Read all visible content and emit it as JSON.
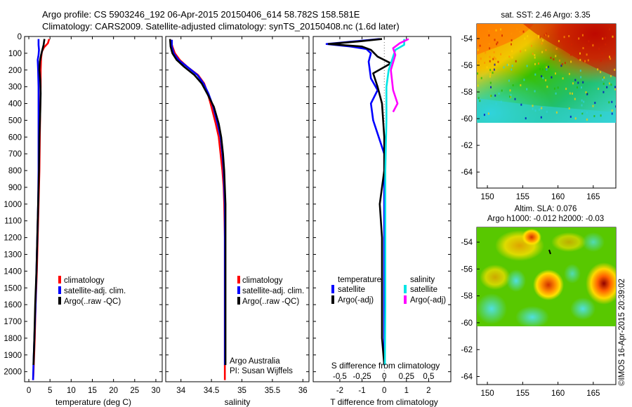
{
  "header": {
    "line1": "Argo profile: CS 5903246_192 06-Apr-2015 20150406_614 58.782S 158.581E",
    "line2": "Climatology: CARS2009. Satellite-adjusted climatology: synTS_20150408.nc (1.6d later)"
  },
  "copyright": "©IMOS 16-Apr-2015 20:39:02",
  "annotations": {
    "argo_australia": "Argo Australia",
    "pi": "PI: Susan Wijffels"
  },
  "colors": {
    "climatology": "#ff0000",
    "satellite": "#0000ff",
    "argo": "#000000",
    "sal_satellite": "#00e5e5",
    "sal_argo": "#ff00ff"
  },
  "legend_profiles": {
    "climatology": "climatology",
    "satellite": "satellite-adj. clim.",
    "argo": "Argo(..raw -QC)"
  },
  "legend_diff": {
    "temp_header": "temperature",
    "sal_header": "salinity",
    "satellite": "satellite",
    "argo": "Argo(-adj)"
  },
  "maps": {
    "sst_title": "sat. SST: 2.46 Argo: 3.35",
    "sla_title1": "Altim. SLA: 0.076",
    "sla_title2": "Argo h1000: -0.012 h2000: -0.03",
    "lat_ticks": [
      "-54",
      "-56",
      "-58",
      "-60",
      "-62",
      "-64"
    ],
    "lon_ticks": [
      "150",
      "155",
      "160",
      "165"
    ]
  },
  "chart_data": [
    {
      "type": "line",
      "xlabel": "temperature (deg C)",
      "ylabel": "",
      "xlim": [
        -1,
        31.5
      ],
      "ylim": [
        2060,
        0
      ],
      "xticks": [
        0,
        5,
        10,
        15,
        20,
        25,
        30
      ],
      "yticks": [
        0,
        100,
        200,
        300,
        400,
        500,
        600,
        700,
        800,
        900,
        1000,
        1100,
        1200,
        1300,
        1400,
        1500,
        1600,
        1700,
        1800,
        1900,
        2000
      ],
      "series": [
        {
          "name": "climatology",
          "color": "#ff0000",
          "points": [
            [
              4.8,
              15
            ],
            [
              4.5,
              40
            ],
            [
              3.6,
              65
            ],
            [
              3.1,
              90
            ],
            [
              2.9,
              130
            ],
            [
              2.8,
              200
            ],
            [
              2.8,
              300
            ],
            [
              2.7,
              420
            ],
            [
              2.6,
              600
            ],
            [
              2.5,
              800
            ],
            [
              2.3,
              1000
            ],
            [
              2.1,
              1200
            ],
            [
              1.9,
              1400
            ],
            [
              1.6,
              1600
            ],
            [
              1.4,
              1800
            ],
            [
              1.1,
              2000
            ],
            [
              1.0,
              2050
            ]
          ]
        },
        {
          "name": "satellite-adj. clim.",
          "color": "#0000ff",
          "points": [
            [
              2.3,
              15
            ],
            [
              2.3,
              50
            ],
            [
              2.4,
              80
            ],
            [
              2.3,
              110
            ],
            [
              2.1,
              140
            ],
            [
              2.2,
              200
            ],
            [
              2.3,
              300
            ],
            [
              2.3,
              420
            ],
            [
              2.3,
              600
            ],
            [
              2.3,
              800
            ],
            [
              2.2,
              1000
            ],
            [
              2.0,
              1200
            ],
            [
              1.8,
              1400
            ],
            [
              1.6,
              1600
            ],
            [
              1.3,
              1800
            ],
            [
              1.1,
              1950
            ],
            [
              1.0,
              2050
            ]
          ]
        },
        {
          "name": "Argo(..raw -QC)",
          "color": "#000000",
          "points": [
            [
              3.7,
              15
            ],
            [
              3.5,
              50
            ],
            [
              3.2,
              80
            ],
            [
              2.9,
              110
            ],
            [
              2.6,
              150
            ],
            [
              2.5,
              200
            ],
            [
              2.7,
              260
            ],
            [
              2.8,
              340
            ],
            [
              2.7,
              450
            ],
            [
              2.5,
              600
            ],
            [
              2.4,
              800
            ],
            [
              2.2,
              1000
            ],
            [
              2.0,
              1200
            ],
            [
              1.8,
              1400
            ],
            [
              1.5,
              1600
            ],
            [
              1.3,
              1800
            ],
            [
              1.1,
              1960
            ]
          ]
        }
      ]
    },
    {
      "type": "line",
      "xlabel": "salinity",
      "ylabel": "",
      "xlim": [
        33.75,
        36.1
      ],
      "ylim": [
        2060,
        0
      ],
      "xticks": [
        34,
        34.5,
        35,
        35.5,
        36
      ],
      "series": [
        {
          "name": "climatology",
          "color": "#ff0000",
          "points": [
            [
              33.83,
              20
            ],
            [
              33.86,
              60
            ],
            [
              33.9,
              100
            ],
            [
              33.98,
              140
            ],
            [
              34.1,
              180
            ],
            [
              34.28,
              230
            ],
            [
              34.38,
              280
            ],
            [
              34.44,
              340
            ],
            [
              34.5,
              420
            ],
            [
              34.57,
              520
            ],
            [
              34.62,
              600
            ],
            [
              34.65,
              700
            ],
            [
              34.68,
              800
            ],
            [
              34.7,
              900
            ],
            [
              34.71,
              1000
            ],
            [
              34.72,
              1200
            ],
            [
              34.72,
              1400
            ],
            [
              34.72,
              1600
            ],
            [
              34.72,
              1800
            ],
            [
              34.72,
              2050
            ]
          ]
        },
        {
          "name": "satellite-adj. clim.",
          "color": "#0000ff",
          "points": [
            [
              33.85,
              20
            ],
            [
              33.85,
              60
            ],
            [
              33.88,
              100
            ],
            [
              33.96,
              140
            ],
            [
              34.1,
              180
            ],
            [
              34.27,
              230
            ],
            [
              34.37,
              280
            ],
            [
              34.45,
              340
            ],
            [
              34.53,
              420
            ],
            [
              34.6,
              520
            ],
            [
              34.65,
              600
            ],
            [
              34.68,
              700
            ],
            [
              34.7,
              800
            ],
            [
              34.71,
              900
            ],
            [
              34.72,
              1000
            ],
            [
              34.72,
              1200
            ],
            [
              34.72,
              1400
            ],
            [
              34.72,
              1600
            ],
            [
              34.72,
              1800
            ],
            [
              34.72,
              1960
            ]
          ]
        },
        {
          "name": "Argo(..raw -QC)",
          "color": "#000000",
          "points": [
            [
              33.82,
              15
            ],
            [
              33.83,
              60
            ],
            [
              33.86,
              100
            ],
            [
              33.93,
              140
            ],
            [
              34.05,
              180
            ],
            [
              34.22,
              230
            ],
            [
              34.34,
              280
            ],
            [
              34.43,
              340
            ],
            [
              34.54,
              420
            ],
            [
              34.62,
              520
            ],
            [
              34.66,
              600
            ],
            [
              34.69,
              700
            ],
            [
              34.71,
              800
            ],
            [
              34.72,
              900
            ],
            [
              34.73,
              1000
            ],
            [
              34.73,
              1200
            ],
            [
              34.73,
              1400
            ],
            [
              34.73,
              1600
            ],
            [
              34.73,
              1800
            ],
            [
              34.73,
              1960
            ]
          ]
        }
      ]
    },
    {
      "type": "line",
      "xlabel": "T difference from climatology",
      "ylabel": "",
      "title": "S difference from climatology",
      "xlim": [
        -3.2,
        3.0
      ],
      "ylim": [
        2060,
        0
      ],
      "xticks": [
        -2,
        -1,
        0,
        1,
        2
      ],
      "top_ticks": [
        "-0.5",
        "-0.25",
        "0",
        "0.25",
        "0.5"
      ],
      "top_tick_values": [
        -0.5,
        -0.25,
        0,
        0.25,
        0.5
      ],
      "series": [
        {
          "name": "temperature satellite",
          "color": "#0000ff",
          "points": [
            [
              -0.2,
              15
            ],
            [
              -2.6,
              45
            ],
            [
              -1.5,
              60
            ],
            [
              -0.8,
              75
            ],
            [
              -0.6,
              100
            ],
            [
              -0.7,
              150
            ],
            [
              -0.6,
              250
            ],
            [
              -0.3,
              320
            ],
            [
              -0.6,
              400
            ],
            [
              -0.5,
              500
            ],
            [
              0,
              700
            ],
            [
              0,
              1000
            ],
            [
              0,
              1500
            ],
            [
              0,
              1960
            ]
          ]
        },
        {
          "name": "temperature Argo(-adj)",
          "color": "#000000",
          "points": [
            [
              -0.1,
              15
            ],
            [
              -1.2,
              30
            ],
            [
              -2.5,
              45
            ],
            [
              -1.0,
              60
            ],
            [
              -0.6,
              80
            ],
            [
              -0.3,
              120
            ],
            [
              0.3,
              160
            ],
            [
              -0.5,
              220
            ],
            [
              -0.3,
              300
            ],
            [
              -0.1,
              400
            ],
            [
              0,
              600
            ],
            [
              0,
              800
            ],
            [
              -0.2,
              1000
            ],
            [
              -0.1,
              1200
            ],
            [
              -0.1,
              1400
            ],
            [
              -0.1,
              1600
            ],
            [
              -0.1,
              1800
            ],
            [
              0,
              1960
            ]
          ]
        },
        {
          "name": "salinity satellite",
          "color": "#00e5e5",
          "points": [
            [
              0.9,
              15
            ],
            [
              0.9,
              50
            ],
            [
              0.5,
              80
            ],
            [
              0.4,
              120
            ],
            [
              0.2,
              200
            ],
            [
              0.1,
              300
            ],
            [
              0.1,
              500
            ],
            [
              0.05,
              800
            ],
            [
              0.05,
              1200
            ],
            [
              0.05,
              1600
            ],
            [
              0.03,
              1960
            ]
          ]
        },
        {
          "name": "salinity Argo(-adj)",
          "color": "#ff00ff",
          "points": [
            [
              1.1,
              15
            ],
            [
              0.7,
              40
            ],
            [
              0.4,
              70
            ],
            [
              0.5,
              110
            ],
            [
              0.3,
              200
            ],
            [
              0.4,
              320
            ],
            [
              0.6,
              400
            ],
            [
              0.4,
              450
            ]
          ]
        }
      ]
    }
  ]
}
